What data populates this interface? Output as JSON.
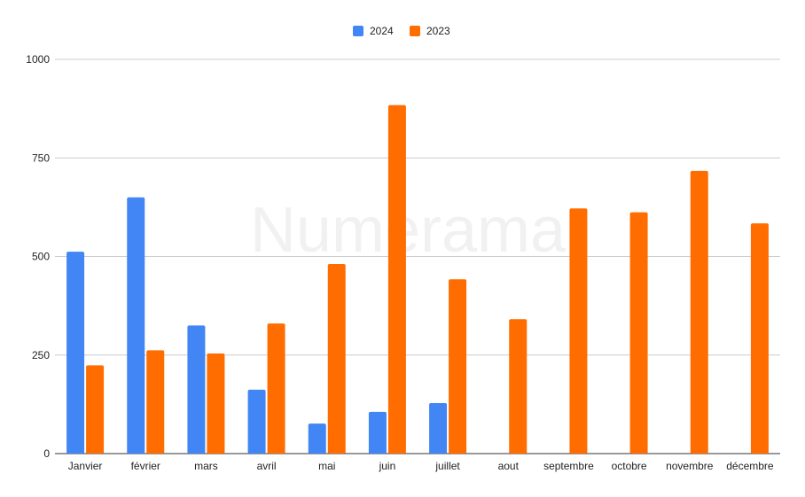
{
  "watermark": "Numerama",
  "chart_data": {
    "type": "bar",
    "title": "",
    "xlabel": "",
    "ylabel": "",
    "ylim": [
      0,
      1000
    ],
    "yticks": [
      0,
      250,
      500,
      750,
      1000
    ],
    "grid": true,
    "legend_position": "top-center",
    "categories": [
      "Janvier",
      "février",
      "mars",
      "avril",
      "mai",
      "juin",
      "juillet",
      "aout",
      "septembre",
      "octobre",
      "novembre",
      "décembre"
    ],
    "series": [
      {
        "name": "2024",
        "color": "#4285f4",
        "values": [
          512,
          650,
          325,
          162,
          76,
          106,
          128,
          null,
          null,
          null,
          null,
          null
        ]
      },
      {
        "name": "2023",
        "color": "#ff6d01",
        "values": [
          224,
          262,
          254,
          330,
          481,
          884,
          442,
          341,
          622,
          612,
          717,
          584
        ]
      }
    ]
  }
}
